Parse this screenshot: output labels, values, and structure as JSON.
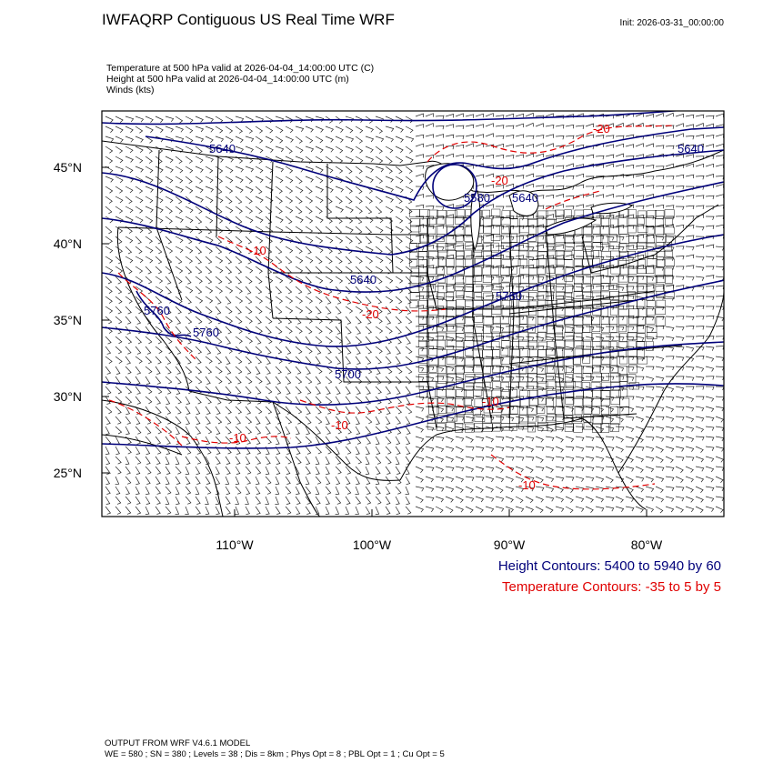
{
  "header": {
    "title": "IWFAQRP Contiguous US Real Time WRF",
    "init": "Init: 2026-03-31_00:00:00"
  },
  "fields": [
    "Temperature at 500 hPa valid at 2026-04-04_14:00:00 UTC   (C)",
    "Height at 500 hPa valid at 2026-04-04_14:00:00 UTC   (m)",
    "Winds   (kts)"
  ],
  "axes": {
    "lat_labels": [
      "45°N",
      "40°N",
      "35°N",
      "30°N",
      "25°N"
    ],
    "lon_labels": [
      "110°W",
      "100°W",
      "90°W",
      "80°W"
    ]
  },
  "contour_labels": {
    "height": [
      "5640",
      "5640",
      "5640",
      "5580",
      "5640",
      "5760",
      "5760",
      "5700",
      "5760",
      "5640"
    ],
    "temperature": [
      "-20",
      "-20",
      "-20",
      "-10",
      "-10",
      "-10",
      "-10",
      "-10"
    ]
  },
  "legend": {
    "height": "Height Contours: 5400 to 5940 by 60",
    "temperature": "Temperature Contours: -35 to 5 by 5"
  },
  "colors": {
    "height_contour": "#00007a",
    "temperature_contour": "#e00000",
    "map_lines": "#000000"
  },
  "footer": {
    "line1": "OUTPUT FROM WRF V4.6.1 MODEL",
    "line2": "WE = 580 ; SN = 380 ; Levels = 38 ; Dis = 8km ; Phys Opt = 8 ; PBL Opt = 1 ; Cu Opt = 5"
  }
}
